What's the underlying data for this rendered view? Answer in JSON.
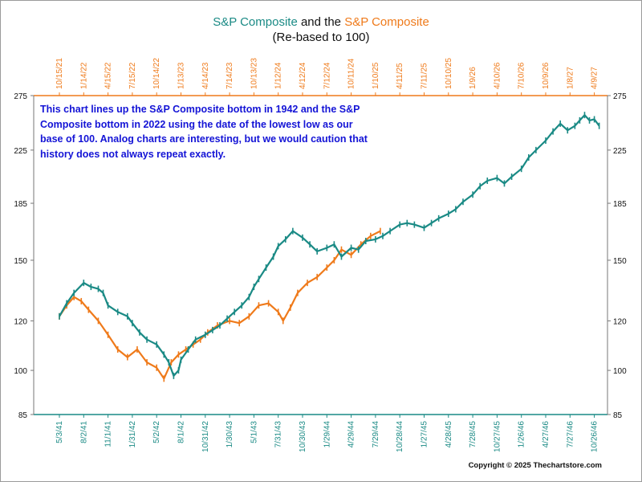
{
  "title": {
    "part1": "S&P Composite",
    "part2": " and the ",
    "part3": "S&P Composite",
    "subtitle": "(Re-based to 100)"
  },
  "note": "This chart lines up the S&P Composite bottom in 1942 and the S&P Composite bottom in 2022 using the date of the lowest low as our base of 100.  Analog charts are interesting, but we would caution that history does not always repeat exactly.",
  "copyright": "Copyright © 2025 Thechartstore.com",
  "colors": {
    "teal": "#1a8a85",
    "orange": "#ef7a1a",
    "note": "#1414d6"
  },
  "chart_data": {
    "type": "line",
    "title": "S&P Composite and the S&P Composite",
    "subtitle": "(Re-based to 100)",
    "y_scale": "log",
    "ylim": [
      85,
      275
    ],
    "y_ticks": [
      85,
      100,
      120,
      150,
      185,
      225,
      275
    ],
    "x_bottom_ticks": [
      "5/3/41",
      "8/2/41",
      "11/1/41",
      "1/31/42",
      "5/2/42",
      "8/1/42",
      "10/31/42",
      "1/30/43",
      "5/1/43",
      "7/31/43",
      "10/30/43",
      "1/29/44",
      "4/29/44",
      "7/29/44",
      "10/28/44",
      "1/27/45",
      "4/28/45",
      "7/28/45",
      "10/27/45",
      "1/26/46",
      "4/27/46",
      "7/27/46",
      "10/26/46"
    ],
    "x_top_ticks": [
      "10/15/21",
      "1/14/22",
      "4/15/22",
      "7/15/22",
      "10/14/22",
      "1/13/23",
      "4/14/23",
      "7/14/23",
      "10/13/23",
      "1/12/24",
      "4/12/24",
      "7/12/24",
      "10/11/24",
      "1/10/25",
      "4/11/25",
      "7/11/25",
      "10/10/25",
      "1/9/26",
      "4/10/26",
      "7/10/26",
      "10/9/26",
      "1/8/27",
      "4/9/27"
    ],
    "grid": false,
    "series": [
      {
        "name": "S&P Composite",
        "axis": "bottom",
        "color": "#1a8a85",
        "x": [
          0,
          0.3,
          0.6,
          1,
          1.3,
          1.6,
          1.8,
          2,
          2.4,
          2.8,
          3,
          3.3,
          3.6,
          4,
          4.3,
          4.5,
          4.7,
          4.9,
          5,
          5.3,
          5.6,
          6,
          6.3,
          6.6,
          6.9,
          7.2,
          7.5,
          7.8,
          8,
          8.2,
          8.5,
          8.8,
          9,
          9.3,
          9.6,
          10,
          10.3,
          10.6,
          11,
          11.3,
          11.6,
          12,
          12.3,
          12.6,
          13,
          13.3,
          13.6,
          14,
          14.3,
          14.6,
          15,
          15.3,
          15.6,
          16,
          16.3,
          16.6,
          17,
          17.3,
          17.6,
          18,
          18.3,
          18.6,
          19,
          19.3,
          19.6,
          20,
          20.3,
          20.6,
          20.9,
          21.2,
          21.4,
          21.6,
          21.8,
          22,
          22.2
        ],
        "y": [
          122,
          128,
          133,
          138,
          136,
          135,
          133,
          127,
          124,
          122,
          119,
          115,
          112,
          110,
          106,
          103,
          98,
          100,
          104,
          108,
          112,
          114,
          116,
          118,
          121,
          124,
          127,
          131,
          136,
          140,
          146,
          152,
          158,
          162,
          167,
          163,
          159,
          155,
          157,
          159,
          152,
          157,
          156,
          161,
          162,
          164,
          167,
          171,
          172,
          171,
          169,
          172,
          175,
          178,
          181,
          186,
          191,
          197,
          201,
          203,
          199,
          204,
          210,
          219,
          225,
          233,
          241,
          248,
          242,
          246,
          251,
          256,
          251,
          252,
          246
        ]
      },
      {
        "name": "S&P Composite",
        "axis": "top",
        "color": "#ef7a1a",
        "x": [
          0,
          0.3,
          0.6,
          0.9,
          1.2,
          1.6,
          2,
          2.4,
          2.8,
          3.2,
          3.6,
          4,
          4.3,
          4.6,
          4.9,
          5.2,
          5.5,
          5.8,
          6.1,
          6.5,
          7,
          7.4,
          7.8,
          8.2,
          8.6,
          9,
          9.2,
          9.5,
          9.8,
          10.2,
          10.6,
          11,
          11.3,
          11.6,
          12,
          12.4,
          12.8,
          13.2
        ],
        "y": [
          122,
          127,
          131,
          129,
          125,
          120,
          114,
          108,
          105,
          108,
          103,
          101,
          97,
          103,
          106,
          108,
          110,
          112,
          115,
          118,
          120,
          119,
          122,
          127,
          128,
          124,
          120,
          126,
          133,
          138,
          141,
          146,
          150,
          156,
          153,
          159,
          164,
          167
        ]
      }
    ]
  }
}
